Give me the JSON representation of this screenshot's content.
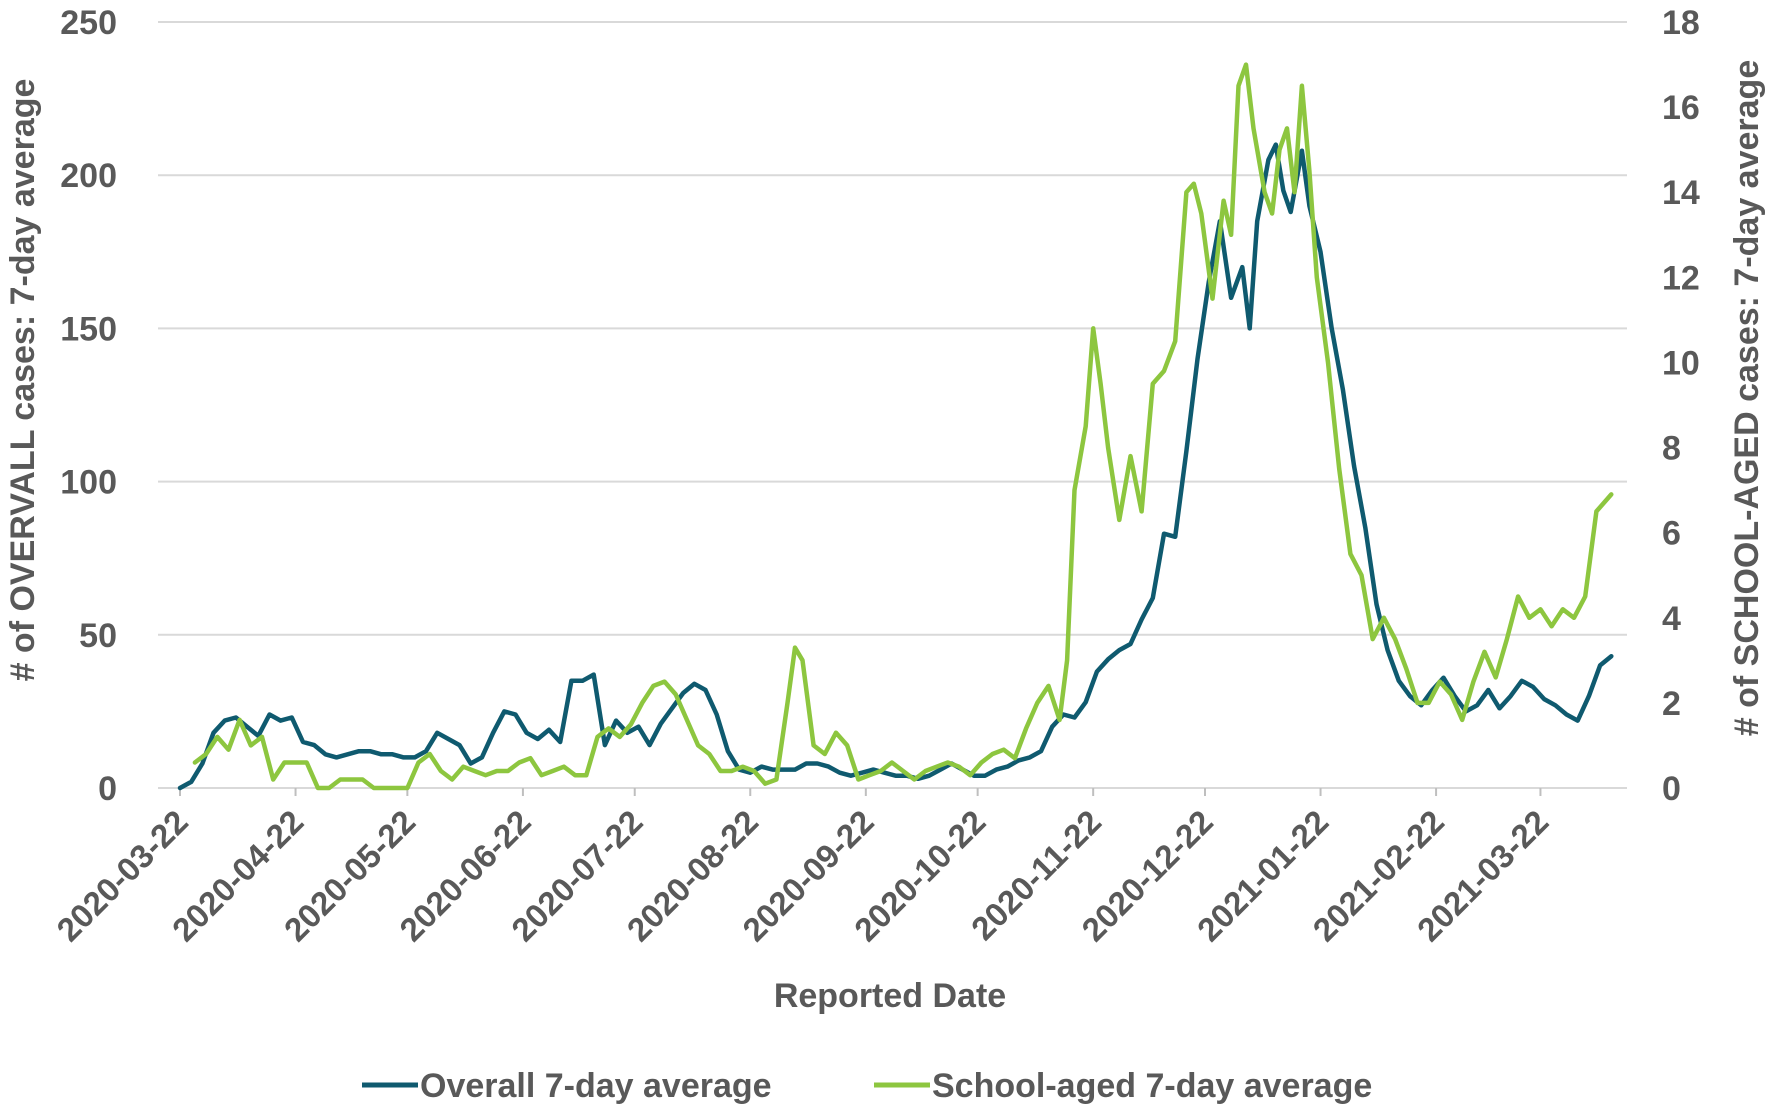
{
  "chart_data": {
    "type": "line",
    "xlabel": "Reported Date",
    "ylabel_left": "# of OVERVALL cases: 7-day average",
    "ylabel_right": "# of SCHOOL-AGED cases: 7-day average",
    "ylim_left": [
      0,
      250
    ],
    "ylim_right": [
      0,
      18
    ],
    "yticks_left": [
      "0",
      "50",
      "100",
      "150",
      "200",
      "250"
    ],
    "yticks_right": [
      "0",
      "2",
      "4",
      "6",
      "8",
      "10",
      "12",
      "14",
      "16",
      "18"
    ],
    "x_range": [
      "2020-03-22",
      "2021-04-11"
    ],
    "x_tick_labels": [
      "2020-03-22",
      "2020-04-22",
      "2020-05-22",
      "2020-06-22",
      "2020-07-22",
      "2020-08-22",
      "2020-09-22",
      "2020-10-22",
      "2020-11-22",
      "2020-12-22",
      "2021-01-22",
      "2021-02-22",
      "2021-03-22"
    ],
    "grid": "horizontal",
    "legend_position": "bottom",
    "series": [
      {
        "name": "Overall 7-day average",
        "axis": "left",
        "color": "#0f5a6f",
        "points": [
          [
            "2020-03-22",
            0
          ],
          [
            "2020-03-25",
            2
          ],
          [
            "2020-03-28",
            8
          ],
          [
            "2020-03-31",
            18
          ],
          [
            "2020-04-03",
            22
          ],
          [
            "2020-04-06",
            23
          ],
          [
            "2020-04-09",
            20
          ],
          [
            "2020-04-12",
            17
          ],
          [
            "2020-04-15",
            24
          ],
          [
            "2020-04-18",
            22
          ],
          [
            "2020-04-21",
            23
          ],
          [
            "2020-04-24",
            15
          ],
          [
            "2020-04-27",
            14
          ],
          [
            "2020-04-30",
            11
          ],
          [
            "2020-05-03",
            10
          ],
          [
            "2020-05-06",
            11
          ],
          [
            "2020-05-09",
            12
          ],
          [
            "2020-05-12",
            12
          ],
          [
            "2020-05-15",
            11
          ],
          [
            "2020-05-18",
            11
          ],
          [
            "2020-05-21",
            10
          ],
          [
            "2020-05-24",
            10
          ],
          [
            "2020-05-27",
            12
          ],
          [
            "2020-05-30",
            18
          ],
          [
            "2020-06-02",
            16
          ],
          [
            "2020-06-05",
            14
          ],
          [
            "2020-06-08",
            8
          ],
          [
            "2020-06-11",
            10
          ],
          [
            "2020-06-14",
            18
          ],
          [
            "2020-06-17",
            25
          ],
          [
            "2020-06-20",
            24
          ],
          [
            "2020-06-23",
            18
          ],
          [
            "2020-06-26",
            16
          ],
          [
            "2020-06-29",
            19
          ],
          [
            "2020-07-02",
            15
          ],
          [
            "2020-07-05",
            35
          ],
          [
            "2020-07-08",
            35
          ],
          [
            "2020-07-11",
            37
          ],
          [
            "2020-07-14",
            14
          ],
          [
            "2020-07-17",
            22
          ],
          [
            "2020-07-20",
            18
          ],
          [
            "2020-07-23",
            20
          ],
          [
            "2020-07-26",
            14
          ],
          [
            "2020-07-29",
            21
          ],
          [
            "2020-08-01",
            26
          ],
          [
            "2020-08-04",
            31
          ],
          [
            "2020-08-07",
            34
          ],
          [
            "2020-08-10",
            32
          ],
          [
            "2020-08-13",
            24
          ],
          [
            "2020-08-16",
            12
          ],
          [
            "2020-08-19",
            6
          ],
          [
            "2020-08-22",
            5
          ],
          [
            "2020-08-25",
            7
          ],
          [
            "2020-08-28",
            6
          ],
          [
            "2020-08-31",
            6
          ],
          [
            "2020-09-03",
            6
          ],
          [
            "2020-09-06",
            8
          ],
          [
            "2020-09-09",
            8
          ],
          [
            "2020-09-12",
            7
          ],
          [
            "2020-09-15",
            5
          ],
          [
            "2020-09-18",
            4
          ],
          [
            "2020-09-21",
            5
          ],
          [
            "2020-09-24",
            6
          ],
          [
            "2020-09-27",
            5
          ],
          [
            "2020-09-30",
            4
          ],
          [
            "2020-10-03",
            4
          ],
          [
            "2020-10-06",
            3
          ],
          [
            "2020-10-09",
            4
          ],
          [
            "2020-10-12",
            6
          ],
          [
            "2020-10-15",
            8
          ],
          [
            "2020-10-18",
            6
          ],
          [
            "2020-10-21",
            4
          ],
          [
            "2020-10-24",
            4
          ],
          [
            "2020-10-27",
            6
          ],
          [
            "2020-10-30",
            7
          ],
          [
            "2020-11-02",
            9
          ],
          [
            "2020-11-05",
            10
          ],
          [
            "2020-11-08",
            12
          ],
          [
            "2020-11-11",
            20
          ],
          [
            "2020-11-14",
            24
          ],
          [
            "2020-11-17",
            23
          ],
          [
            "2020-11-20",
            28
          ],
          [
            "2020-11-23",
            38
          ],
          [
            "2020-11-26",
            42
          ],
          [
            "2020-11-29",
            45
          ],
          [
            "2020-12-02",
            47
          ],
          [
            "2020-12-05",
            55
          ],
          [
            "2020-12-08",
            62
          ],
          [
            "2020-12-11",
            83
          ],
          [
            "2020-12-14",
            82
          ],
          [
            "2020-12-17",
            110
          ],
          [
            "2020-12-20",
            140
          ],
          [
            "2020-12-23",
            165
          ],
          [
            "2020-12-26",
            185
          ],
          [
            "2020-12-29",
            160
          ],
          [
            "2021-01-01",
            170
          ],
          [
            "2021-01-03",
            150
          ],
          [
            "2021-01-05",
            185
          ],
          [
            "2021-01-08",
            205
          ],
          [
            "2021-01-10",
            210
          ],
          [
            "2021-01-12",
            195
          ],
          [
            "2021-01-14",
            188
          ],
          [
            "2021-01-17",
            208
          ],
          [
            "2021-01-19",
            190
          ],
          [
            "2021-01-22",
            175
          ],
          [
            "2021-01-25",
            150
          ],
          [
            "2021-01-28",
            130
          ],
          [
            "2021-01-31",
            105
          ],
          [
            "2021-02-03",
            85
          ],
          [
            "2021-02-06",
            60
          ],
          [
            "2021-02-09",
            45
          ],
          [
            "2021-02-12",
            35
          ],
          [
            "2021-02-15",
            30
          ],
          [
            "2021-02-18",
            27
          ],
          [
            "2021-02-21",
            32
          ],
          [
            "2021-02-24",
            36
          ],
          [
            "2021-02-27",
            30
          ],
          [
            "2021-03-02",
            25
          ],
          [
            "2021-03-05",
            27
          ],
          [
            "2021-03-08",
            32
          ],
          [
            "2021-03-11",
            26
          ],
          [
            "2021-03-14",
            30
          ],
          [
            "2021-03-17",
            35
          ],
          [
            "2021-03-20",
            33
          ],
          [
            "2021-03-23",
            29
          ],
          [
            "2021-03-26",
            27
          ],
          [
            "2021-03-29",
            24
          ],
          [
            "2021-04-01",
            22
          ],
          [
            "2021-04-04",
            30
          ],
          [
            "2021-04-07",
            40
          ],
          [
            "2021-04-10",
            43
          ]
        ]
      },
      {
        "name": "School-aged 7-day average",
        "axis": "right",
        "color": "#8dc63f",
        "points": [
          [
            "2020-03-26",
            0.6
          ],
          [
            "2020-03-29",
            0.8
          ],
          [
            "2020-04-01",
            1.2
          ],
          [
            "2020-04-04",
            0.9
          ],
          [
            "2020-04-07",
            1.6
          ],
          [
            "2020-04-10",
            1.0
          ],
          [
            "2020-04-13",
            1.2
          ],
          [
            "2020-04-16",
            0.2
          ],
          [
            "2020-04-19",
            0.6
          ],
          [
            "2020-04-22",
            0.6
          ],
          [
            "2020-04-25",
            0.6
          ],
          [
            "2020-04-28",
            0.0
          ],
          [
            "2020-05-01",
            0.0
          ],
          [
            "2020-05-04",
            0.2
          ],
          [
            "2020-05-07",
            0.2
          ],
          [
            "2020-05-10",
            0.2
          ],
          [
            "2020-05-13",
            0.0
          ],
          [
            "2020-05-16",
            0.0
          ],
          [
            "2020-05-19",
            0.0
          ],
          [
            "2020-05-22",
            0.0
          ],
          [
            "2020-05-25",
            0.6
          ],
          [
            "2020-05-28",
            0.8
          ],
          [
            "2020-05-31",
            0.4
          ],
          [
            "2020-06-03",
            0.2
          ],
          [
            "2020-06-06",
            0.5
          ],
          [
            "2020-06-09",
            0.4
          ],
          [
            "2020-06-12",
            0.3
          ],
          [
            "2020-06-15",
            0.4
          ],
          [
            "2020-06-18",
            0.4
          ],
          [
            "2020-06-21",
            0.6
          ],
          [
            "2020-06-24",
            0.7
          ],
          [
            "2020-06-27",
            0.3
          ],
          [
            "2020-06-30",
            0.4
          ],
          [
            "2020-07-03",
            0.5
          ],
          [
            "2020-07-06",
            0.3
          ],
          [
            "2020-07-09",
            0.3
          ],
          [
            "2020-07-12",
            1.2
          ],
          [
            "2020-07-15",
            1.4
          ],
          [
            "2020-07-18",
            1.2
          ],
          [
            "2020-07-21",
            1.5
          ],
          [
            "2020-07-24",
            2.0
          ],
          [
            "2020-07-27",
            2.4
          ],
          [
            "2020-07-30",
            2.5
          ],
          [
            "2020-08-02",
            2.2
          ],
          [
            "2020-08-05",
            1.6
          ],
          [
            "2020-08-08",
            1.0
          ],
          [
            "2020-08-11",
            0.8
          ],
          [
            "2020-08-14",
            0.4
          ],
          [
            "2020-08-17",
            0.4
          ],
          [
            "2020-08-20",
            0.5
          ],
          [
            "2020-08-23",
            0.4
          ],
          [
            "2020-08-26",
            0.1
          ],
          [
            "2020-08-29",
            0.2
          ],
          [
            "2020-09-01",
            2.0
          ],
          [
            "2020-09-03",
            3.3
          ],
          [
            "2020-09-05",
            3.0
          ],
          [
            "2020-09-08",
            1.0
          ],
          [
            "2020-09-11",
            0.8
          ],
          [
            "2020-09-14",
            1.3
          ],
          [
            "2020-09-17",
            1.0
          ],
          [
            "2020-09-20",
            0.2
          ],
          [
            "2020-09-23",
            0.3
          ],
          [
            "2020-09-26",
            0.4
          ],
          [
            "2020-09-29",
            0.6
          ],
          [
            "2020-10-02",
            0.4
          ],
          [
            "2020-10-05",
            0.2
          ],
          [
            "2020-10-08",
            0.4
          ],
          [
            "2020-10-11",
            0.5
          ],
          [
            "2020-10-14",
            0.6
          ],
          [
            "2020-10-17",
            0.5
          ],
          [
            "2020-10-20",
            0.3
          ],
          [
            "2020-10-23",
            0.6
          ],
          [
            "2020-10-26",
            0.8
          ],
          [
            "2020-10-29",
            0.9
          ],
          [
            "2020-11-01",
            0.7
          ],
          [
            "2020-11-04",
            1.4
          ],
          [
            "2020-11-07",
            2.0
          ],
          [
            "2020-11-10",
            2.4
          ],
          [
            "2020-11-13",
            1.6
          ],
          [
            "2020-11-15",
            3.0
          ],
          [
            "2020-11-17",
            7.0
          ],
          [
            "2020-11-20",
            8.5
          ],
          [
            "2020-11-22",
            10.8
          ],
          [
            "2020-11-24",
            9.5
          ],
          [
            "2020-11-26",
            8.0
          ],
          [
            "2020-11-29",
            6.3
          ],
          [
            "2020-12-02",
            7.8
          ],
          [
            "2020-12-05",
            6.5
          ],
          [
            "2020-12-08",
            9.5
          ],
          [
            "2020-12-11",
            9.8
          ],
          [
            "2020-12-14",
            10.5
          ],
          [
            "2020-12-17",
            14.0
          ],
          [
            "2020-12-19",
            14.2
          ],
          [
            "2020-12-21",
            13.5
          ],
          [
            "2020-12-24",
            11.5
          ],
          [
            "2020-12-27",
            13.8
          ],
          [
            "2020-12-29",
            13.0
          ],
          [
            "2020-12-31",
            16.5
          ],
          [
            "2021-01-02",
            17.0
          ],
          [
            "2021-01-04",
            15.5
          ],
          [
            "2021-01-07",
            14.0
          ],
          [
            "2021-01-09",
            13.5
          ],
          [
            "2021-01-11",
            15.0
          ],
          [
            "2021-01-13",
            15.5
          ],
          [
            "2021-01-15",
            14.0
          ],
          [
            "2021-01-17",
            16.5
          ],
          [
            "2021-01-19",
            14.5
          ],
          [
            "2021-01-21",
            12.0
          ],
          [
            "2021-01-24",
            10.0
          ],
          [
            "2021-01-27",
            7.5
          ],
          [
            "2021-01-30",
            5.5
          ],
          [
            "2021-02-02",
            5.0
          ],
          [
            "2021-02-05",
            3.5
          ],
          [
            "2021-02-08",
            4.0
          ],
          [
            "2021-02-11",
            3.5
          ],
          [
            "2021-02-14",
            2.8
          ],
          [
            "2021-02-17",
            2.0
          ],
          [
            "2021-02-20",
            2.0
          ],
          [
            "2021-02-23",
            2.5
          ],
          [
            "2021-02-26",
            2.2
          ],
          [
            "2021-03-01",
            1.6
          ],
          [
            "2021-03-04",
            2.5
          ],
          [
            "2021-03-07",
            3.2
          ],
          [
            "2021-03-10",
            2.6
          ],
          [
            "2021-03-13",
            3.5
          ],
          [
            "2021-03-16",
            4.5
          ],
          [
            "2021-03-19",
            4.0
          ],
          [
            "2021-03-22",
            4.2
          ],
          [
            "2021-03-25",
            3.8
          ],
          [
            "2021-03-28",
            4.2
          ],
          [
            "2021-03-31",
            4.0
          ],
          [
            "2021-04-03",
            4.5
          ],
          [
            "2021-04-06",
            6.5
          ],
          [
            "2021-04-10",
            6.9
          ]
        ]
      }
    ]
  }
}
